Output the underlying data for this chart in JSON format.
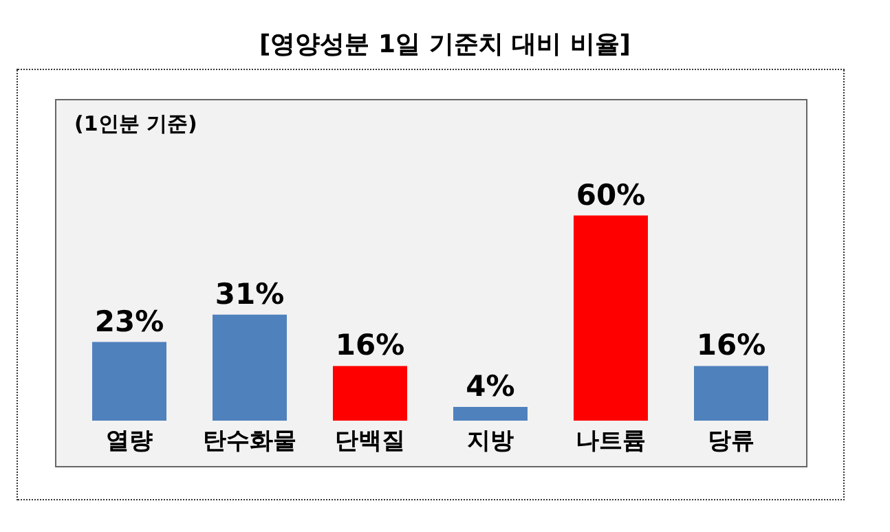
{
  "chart_data": {
    "type": "bar",
    "title": "[영양성분 1일 기준치 대비 비율]",
    "annotations": [
      "(1인분 기준)"
    ],
    "categories": [
      "열량",
      "탄수화물",
      "단백질",
      "지방",
      "나트륨",
      "당류"
    ],
    "values": [
      23,
      31,
      16,
      4,
      60,
      16
    ],
    "colors": [
      "#4f81bd",
      "#4f81bd",
      "#ff0000",
      "#4f81bd",
      "#ff0000",
      "#4f81bd"
    ],
    "value_labels": [
      "23%",
      "31%",
      "16%",
      "4%",
      "60%",
      "16%"
    ],
    "grid": false,
    "legend": false
  }
}
